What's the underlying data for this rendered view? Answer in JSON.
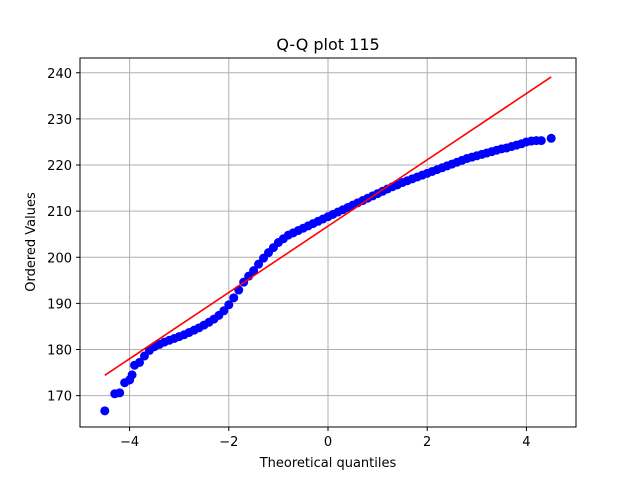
{
  "chart_data": {
    "type": "scatter",
    "title": "Q-Q plot 115",
    "xlabel": "Theoretical quantiles",
    "ylabel": "Ordered Values",
    "xlim": [
      -5.0,
      5.0
    ],
    "ylim": [
      163.2,
      243.2
    ],
    "xticks": [
      -4,
      -2,
      0,
      2,
      4
    ],
    "xtick_labels": [
      "−4",
      "−2",
      "0",
      "2",
      "4"
    ],
    "yticks": [
      170,
      180,
      190,
      200,
      210,
      220,
      230,
      240
    ],
    "ytick_labels": [
      "170",
      "180",
      "190",
      "200",
      "210",
      "220",
      "230",
      "240"
    ],
    "grid": true,
    "legend": false,
    "colors": {
      "points": "#0000ff",
      "fit_line": "#ff0000"
    },
    "series": [
      {
        "kind": "points",
        "x": [
          -4.5,
          -4.3,
          -4.2,
          -4.1,
          -4.0,
          -3.95,
          -3.9,
          -3.8,
          -3.7,
          -3.6,
          -3.5,
          -3.4,
          -3.3,
          -3.2,
          -3.1,
          -3.0,
          -2.9,
          -2.8,
          -2.7,
          -2.6,
          -2.5,
          -2.4,
          -2.3,
          -2.2,
          -2.1,
          -2.0,
          -1.9,
          -1.8,
          -1.7,
          -1.6,
          -1.5,
          -1.4,
          -1.3,
          -1.2,
          -1.1,
          -1.0,
          -0.9,
          -0.8,
          -0.7,
          -0.6,
          -0.5,
          -0.4,
          -0.3,
          -0.2,
          -0.1,
          0.0,
          0.1,
          0.2,
          0.3,
          0.4,
          0.5,
          0.6,
          0.7,
          0.8,
          0.9,
          1.0,
          1.1,
          1.2,
          1.3,
          1.4,
          1.5,
          1.6,
          1.7,
          1.8,
          1.9,
          2.0,
          2.1,
          2.2,
          2.3,
          2.4,
          2.5,
          2.6,
          2.7,
          2.8,
          2.9,
          3.0,
          3.1,
          3.2,
          3.3,
          3.4,
          3.5,
          3.6,
          3.7,
          3.8,
          3.9,
          4.0,
          4.1,
          4.2,
          4.3,
          4.5
        ],
        "y": [
          166.7,
          170.4,
          170.6,
          172.8,
          173.4,
          174.5,
          176.6,
          177.2,
          178.6,
          179.8,
          180.6,
          181.1,
          181.6,
          182.0,
          182.4,
          182.8,
          183.2,
          183.7,
          184.2,
          184.7,
          185.3,
          185.9,
          186.6,
          187.4,
          188.4,
          189.7,
          191.2,
          192.9,
          194.6,
          195.9,
          197.1,
          198.5,
          199.8,
          201.0,
          202.1,
          203.2,
          204.0,
          204.8,
          205.3,
          205.8,
          206.3,
          206.8,
          207.3,
          207.8,
          208.3,
          208.8,
          209.3,
          209.8,
          210.3,
          210.8,
          211.3,
          211.8,
          212.3,
          212.8,
          213.3,
          213.8,
          214.3,
          214.8,
          215.3,
          215.7,
          216.2,
          216.6,
          217.0,
          217.4,
          217.8,
          218.2,
          218.6,
          219.0,
          219.4,
          219.8,
          220.2,
          220.6,
          221.0,
          221.4,
          221.7,
          222.0,
          222.3,
          222.6,
          222.9,
          223.2,
          223.5,
          223.7,
          224.0,
          224.3,
          224.6,
          225.0,
          225.2,
          225.3,
          225.3,
          225.8
        ]
      },
      {
        "kind": "line",
        "x": [
          -4.5,
          4.5
        ],
        "y": [
          174.4,
          239.1
        ]
      }
    ]
  }
}
